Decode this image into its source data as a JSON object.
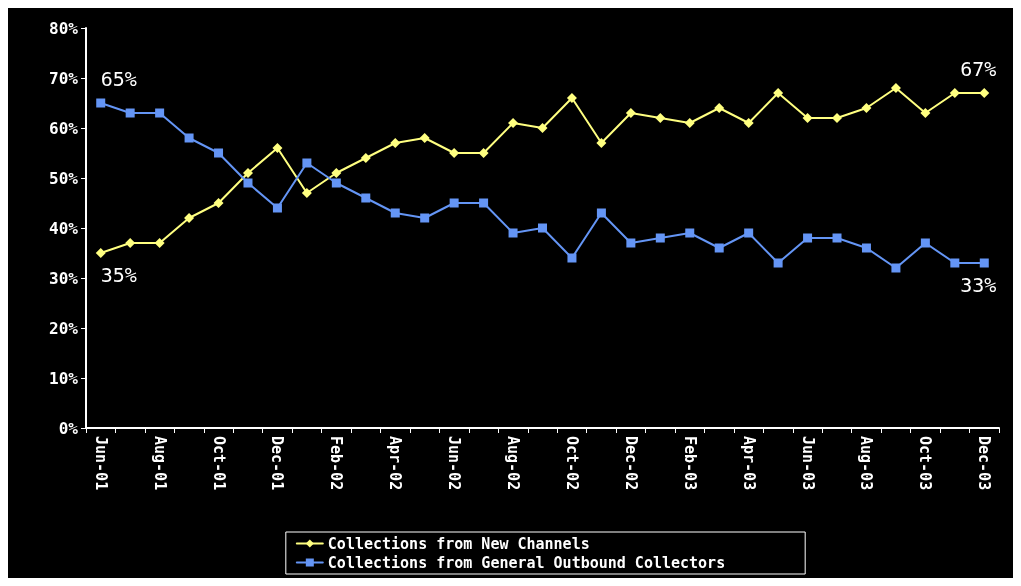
{
  "chart_data": {
    "type": "line",
    "categories": [
      "Jun-01",
      null,
      "Aug-01",
      null,
      "Oct-01",
      null,
      "Dec-01",
      null,
      "Feb-02",
      null,
      "Apr-02",
      null,
      "Jun-02",
      null,
      "Aug-02",
      null,
      "Oct-02",
      null,
      "Dec-02",
      null,
      "Feb-03",
      null,
      "Apr-03",
      null,
      "Jun-03",
      null,
      "Aug-03",
      null,
      "Oct-03",
      null,
      "Dec-03"
    ],
    "series": [
      {
        "name": "Collections from New Channels",
        "color": "#ffff80",
        "marker": "diamond",
        "values": [
          35,
          37,
          37,
          42,
          45,
          51,
          56,
          47,
          51,
          54,
          57,
          58,
          55,
          55,
          61,
          60,
          66,
          57,
          63,
          62,
          61,
          64,
          61,
          67,
          62,
          62,
          64,
          68,
          63,
          67,
          67
        ]
      },
      {
        "name": "Collections from General Outbound Collectors",
        "color": "#6495f5",
        "marker": "square",
        "values": [
          65,
          63,
          63,
          58,
          55,
          49,
          44,
          53,
          49,
          46,
          43,
          42,
          45,
          45,
          39,
          40,
          34,
          43,
          37,
          38,
          39,
          36,
          39,
          33,
          38,
          38,
          36,
          32,
          37,
          33,
          33
        ]
      }
    ],
    "ylim": [
      0,
      80
    ],
    "yticks": [
      {
        "value": 0,
        "label": "0%"
      },
      {
        "value": 10,
        "label": "10%"
      },
      {
        "value": 20,
        "label": "20%"
      },
      {
        "value": 30,
        "label": "30%"
      },
      {
        "value": 40,
        "label": "40%"
      },
      {
        "value": 50,
        "label": "50%"
      },
      {
        "value": 60,
        "label": "60%"
      },
      {
        "value": 70,
        "label": "70%"
      },
      {
        "value": 80,
        "label": "80%"
      }
    ],
    "annotations": [
      {
        "text": "65%",
        "x": "Jun-01",
        "y": 65
      },
      {
        "text": "35%",
        "x": "Jun-01",
        "y": 35
      },
      {
        "text": "67%",
        "x": "Dec-03",
        "y": 67
      },
      {
        "text": "33%",
        "x": "Dec-03",
        "y": 33
      }
    ],
    "grid": false,
    "legend": "bottom",
    "line_style": "solid"
  }
}
